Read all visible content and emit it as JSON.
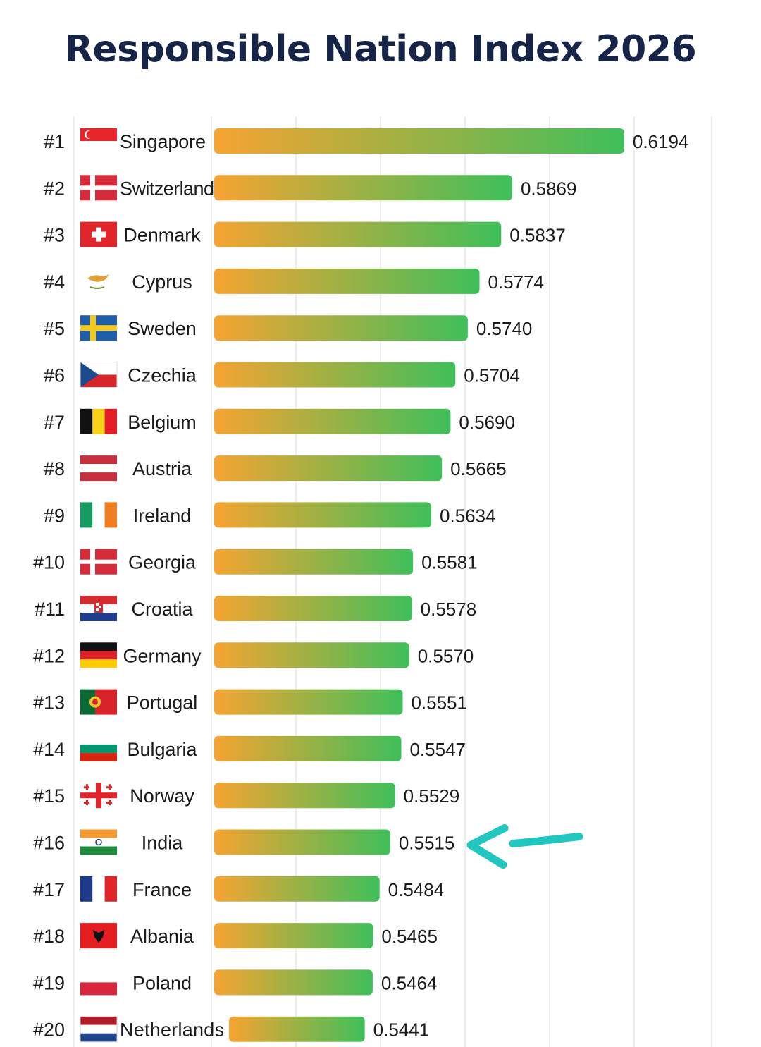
{
  "colors": {
    "title": "#152447",
    "bar_start": "#f6a431",
    "bar_end": "#3fbf5a",
    "arrow": "#21c6c0",
    "grid": "#eeeeee"
  },
  "chart_data": {
    "type": "bar",
    "orientation": "horizontal",
    "title": "Responsible Nation Index 2026",
    "xlabel": "",
    "ylabel": "",
    "grid": true,
    "highlight": "India",
    "rows": [
      {
        "rank": "#1",
        "country": "Singapore",
        "value": 0.6194,
        "flag_icon": "singapore-flag-icon"
      },
      {
        "rank": "#2",
        "country": "Switzerland",
        "value": 0.5869,
        "flag_icon": "denmark-flag-icon"
      },
      {
        "rank": "#3",
        "country": "Denmark",
        "value": 0.5837,
        "flag_icon": "switzerland-flag-icon"
      },
      {
        "rank": "#4",
        "country": "Cyprus",
        "value": 0.5774,
        "flag_icon": "cyprus-flag-icon"
      },
      {
        "rank": "#5",
        "country": "Sweden",
        "value": 0.574,
        "flag_icon": "sweden-flag-icon"
      },
      {
        "rank": "#6",
        "country": "Czechia",
        "value": 0.5704,
        "flag_icon": "czechia-flag-icon"
      },
      {
        "rank": "#7",
        "country": "Belgium",
        "value": 0.569,
        "flag_icon": "belgium-flag-icon"
      },
      {
        "rank": "#8",
        "country": "Austria",
        "value": 0.5665,
        "flag_icon": "austria-flag-icon"
      },
      {
        "rank": "#9",
        "country": "Ireland",
        "value": 0.5634,
        "flag_icon": "ireland-flag-icon"
      },
      {
        "rank": "#10",
        "country": "Georgia",
        "value": 0.5581,
        "flag_icon": "denmark-flag-icon"
      },
      {
        "rank": "#11",
        "country": "Croatia",
        "value": 0.5578,
        "flag_icon": "croatia-flag-icon"
      },
      {
        "rank": "#12",
        "country": "Germany",
        "value": 0.557,
        "flag_icon": "germany-flag-icon"
      },
      {
        "rank": "#13",
        "country": "Portugal",
        "value": 0.5551,
        "flag_icon": "portugal-flag-icon"
      },
      {
        "rank": "#14",
        "country": "Bulgaria",
        "value": 0.5547,
        "flag_icon": "bulgaria-flag-icon"
      },
      {
        "rank": "#15",
        "country": "Norway",
        "value": 0.5529,
        "flag_icon": "georgia-flag-icon"
      },
      {
        "rank": "#16",
        "country": "India",
        "value": 0.5515,
        "flag_icon": "india-flag-icon"
      },
      {
        "rank": "#17",
        "country": "France",
        "value": 0.5484,
        "flag_icon": "france-flag-icon"
      },
      {
        "rank": "#18",
        "country": "Albania",
        "value": 0.5465,
        "flag_icon": "albania-flag-icon"
      },
      {
        "rank": "#19",
        "country": "Poland",
        "value": 0.5464,
        "flag_icon": "poland-flag-icon"
      },
      {
        "rank": "#20",
        "country": "Netherlands",
        "value": 0.5441,
        "flag_icon": "netherlands-flag-icon"
      }
    ]
  }
}
